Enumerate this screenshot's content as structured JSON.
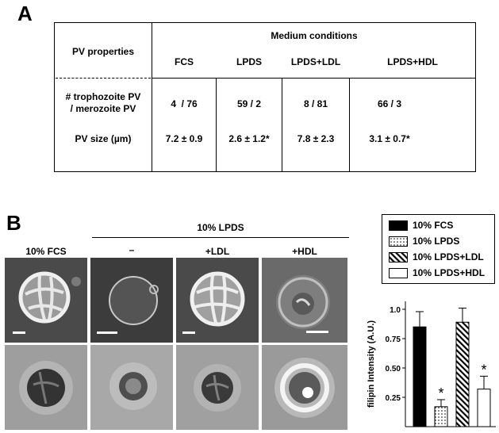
{
  "panel_a": {
    "letter": "A",
    "row_header": "PV properties",
    "medium_header": "Medium conditions",
    "columns": [
      "FCS",
      "LPDS",
      "LPDS+LDL",
      "LPDS+HDL"
    ],
    "row1_label_line1": "# trophozoite PV",
    "row1_label_line2": "/ merozoite PV",
    "row1_values": [
      "4  / 76",
      "59 / 2",
      "8 / 81",
      "66 / 3"
    ],
    "row2_label": "PV size (µm)",
    "row2_values": [
      "7.2 ± 0.9",
      "2.6 ± 1.2*",
      "7.8 ± 2.3",
      "3.1 ± 0.7*"
    ]
  },
  "panel_b": {
    "letter": "B",
    "group_label": "10% LPDS",
    "columns": [
      "10% FCS",
      "–",
      "+LDL",
      "+HDL"
    ]
  },
  "legend": {
    "items": [
      {
        "label": "10% FCS",
        "pattern": "solid"
      },
      {
        "label": "10% LPDS",
        "pattern": "dots"
      },
      {
        "label": "10% LPDS+LDL",
        "pattern": "hatch"
      },
      {
        "label": "10% LPDS+HDL",
        "pattern": "white"
      }
    ]
  },
  "chart_data": {
    "type": "bar",
    "ylabel": "filipin Intensity (A.U.)",
    "categories": [
      "10% FCS",
      "10% LPDS",
      "10% LPDS+LDL",
      "10% LPDS+HDL"
    ],
    "values": [
      0.85,
      0.17,
      0.89,
      0.32
    ],
    "errors": [
      0.13,
      0.06,
      0.12,
      0.11
    ],
    "significance": [
      "",
      "*",
      "",
      "*"
    ],
    "patterns": [
      "solid",
      "dots",
      "hatch",
      "white"
    ],
    "ylim": [
      0.0,
      1.0
    ],
    "yticks": [
      0.25,
      0.5,
      0.75,
      1.0
    ],
    "ytick_labels": [
      "0.25",
      "0.50",
      "0.75",
      "1.0"
    ]
  }
}
